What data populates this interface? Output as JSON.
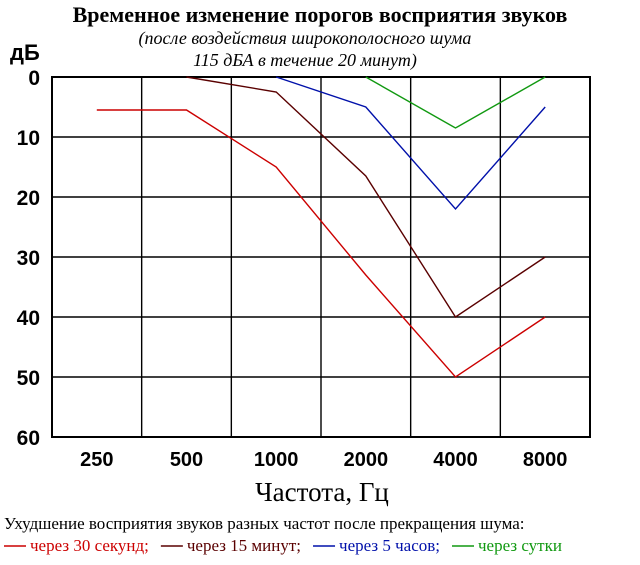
{
  "chart_data": {
    "type": "line",
    "title": "Временное изменение порогов восприятия звуков",
    "subtitle_lines": [
      "(после воздействия широкополосного шума",
      "115 дБА в течение 20 минут)"
    ],
    "ylabel": "дБ",
    "xlabel": "Частота, Гц",
    "categories": [
      "250",
      "500",
      "1000",
      "2000",
      "4000",
      "8000"
    ],
    "yticks": [
      "0",
      "10",
      "20",
      "30",
      "40",
      "50",
      "60"
    ],
    "ylim": [
      0,
      60
    ],
    "y_inverted": true,
    "grid": true,
    "series": [
      {
        "name": "через 30 секунд;",
        "color": "#cc0000",
        "points": [
          [
            250,
            5.5
          ],
          [
            500,
            5.5
          ],
          [
            1000,
            15
          ],
          [
            2000,
            33
          ],
          [
            4000,
            50
          ],
          [
            8000,
            40
          ]
        ]
      },
      {
        "name": "через 15 минут;",
        "color": "#5a0000",
        "points": [
          [
            500,
            0
          ],
          [
            1000,
            2.5
          ],
          [
            2000,
            16.5
          ],
          [
            4000,
            40
          ],
          [
            8000,
            30
          ]
        ]
      },
      {
        "name": "через 5 часов;",
        "color": "#0010aa",
        "points": [
          [
            1000,
            0
          ],
          [
            2000,
            5
          ],
          [
            4000,
            22
          ],
          [
            8000,
            5
          ]
        ]
      },
      {
        "name": "через сутки",
        "color": "#119911",
        "points": [
          [
            2000,
            0
          ],
          [
            4000,
            8.5
          ],
          [
            8000,
            0
          ]
        ]
      }
    ],
    "caption": "Ухудшение восприятия звуков разных частот после прекращения шума:"
  }
}
